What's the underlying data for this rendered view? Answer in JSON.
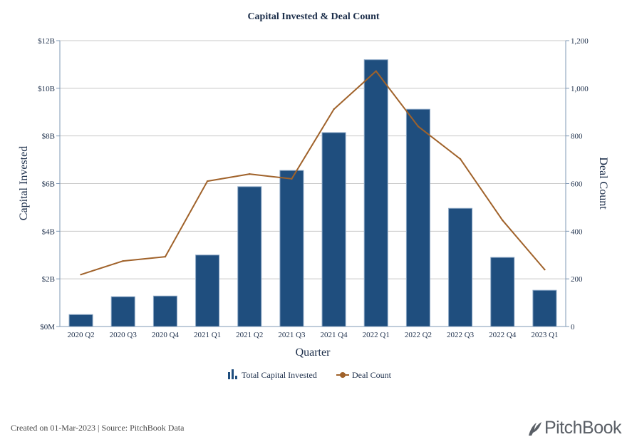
{
  "chart_data": {
    "type": "bar+line",
    "title": "Capital Invested & Deal Count",
    "xlabel": "Quarter",
    "ylabel": "Capital Invested",
    "y2label": "Deal Count",
    "categories": [
      "2020 Q2",
      "2020 Q3",
      "2020 Q4",
      "2021 Q1",
      "2021 Q2",
      "2021 Q3",
      "2021 Q4",
      "2022 Q1",
      "2022 Q2",
      "2022 Q3",
      "2022 Q4",
      "2023 Q1"
    ],
    "series": [
      {
        "name": "Total Capital Invested",
        "type": "bar",
        "axis": "left",
        "unit": "USD billions",
        "color": "#1f4e7e",
        "values": [
          0.5,
          1.25,
          1.28,
          3.0,
          5.87,
          6.55,
          8.14,
          11.2,
          9.12,
          4.96,
          2.9,
          1.52
        ]
      },
      {
        "name": "Deal Count",
        "type": "line",
        "axis": "right",
        "color": "#a0622a",
        "values": [
          218,
          275,
          293,
          610,
          640,
          620,
          912,
          1072,
          840,
          703,
          446,
          239
        ]
      }
    ],
    "ylim": [
      0,
      12
    ],
    "y2lim": [
      0,
      1200
    ],
    "yticks": [
      0,
      2,
      4,
      6,
      8,
      10,
      12
    ],
    "ytick_labels": [
      "$0M",
      "$2B",
      "$4B",
      "$6B",
      "$8B",
      "$10B",
      "$12B"
    ],
    "y2ticks": [
      0,
      200,
      400,
      600,
      800,
      1000,
      1200
    ],
    "y2tick_labels": [
      "0",
      "200",
      "400",
      "600",
      "800",
      "1,000",
      "1,200"
    ],
    "grid": true,
    "legend_position": "bottom-center",
    "legend": [
      "Total Capital Invested",
      "Deal Count"
    ]
  },
  "footer": {
    "note": "Created on 01-Mar-2023 | Source: PitchBook Data",
    "brand": "PitchBook"
  },
  "colors": {
    "bar": "#1f4e7e",
    "bar_border": "#8aa6c4",
    "line": "#a0622a",
    "grid": "#c8c8c8",
    "axis": "#7f98b5",
    "text": "#1c2e4a"
  }
}
